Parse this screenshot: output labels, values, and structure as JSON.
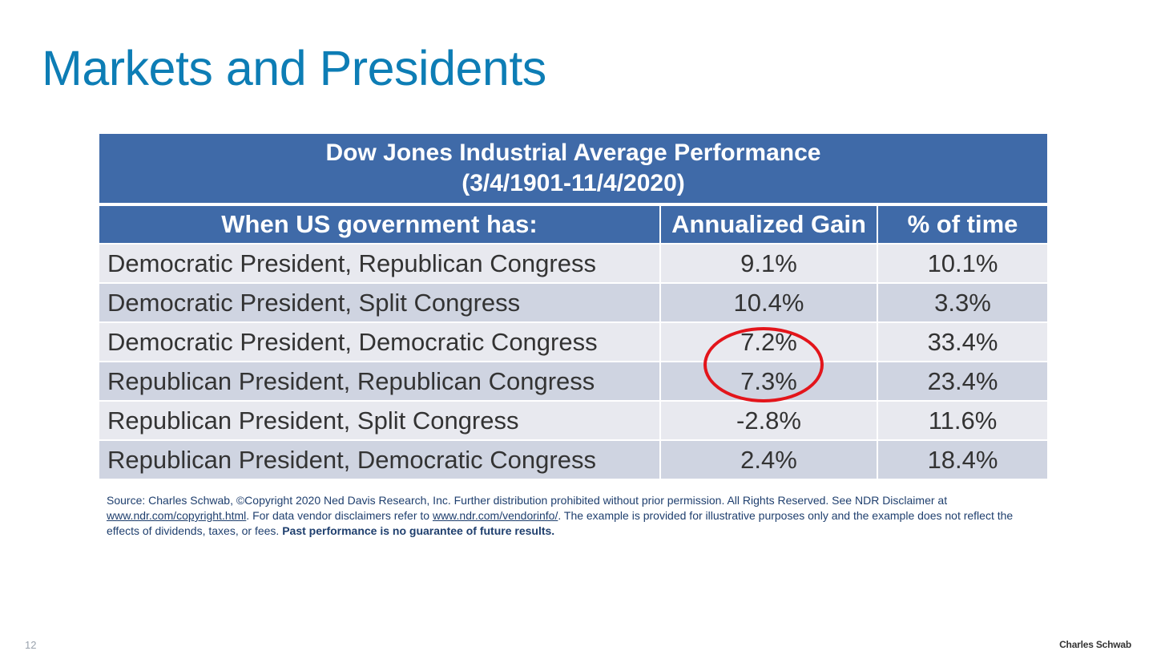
{
  "slide": {
    "title": "Markets and Presidents",
    "page_number": "12",
    "brand": "Charles Schwab"
  },
  "table": {
    "caption_line1": "Dow Jones Industrial Average Performance",
    "caption_line2": "(3/4/1901-11/4/2020)",
    "headers": [
      "When US government has:",
      "Annualized Gain",
      "% of time"
    ],
    "rows": [
      {
        "label": "Democratic President, Republican Congress",
        "gain": "9.1%",
        "time": "10.1%"
      },
      {
        "label": "Democratic President, Split Congress",
        "gain": "10.4%",
        "time": "3.3%"
      },
      {
        "label": "Democratic President, Democratic Congress",
        "gain": "7.2%",
        "time": "33.4%"
      },
      {
        "label": "Republican President, Republican Congress",
        "gain": "7.3%",
        "time": "23.4%"
      },
      {
        "label": "Republican President, Split Congress",
        "gain": "-2.8%",
        "time": "11.6%"
      },
      {
        "label": "Republican President, Democratic Congress",
        "gain": "2.4%",
        "time": "18.4%"
      }
    ],
    "highlight_color": "#e3151b"
  },
  "footnote": {
    "part1": "Source: Charles Schwab, ©Copyright 2020 Ned Davis Research, Inc. Further distribution prohibited without prior permission. All Rights Reserved. See NDR Disclaimer at ",
    "link1": "www.ndr.com/copyright.html",
    "part2": ". For data vendor disclaimers refer to ",
    "link2": "www.ndr.com/vendorinfo/",
    "part3": ". The example is provided for illustrative purposes only and the example does not reflect the effects of dividends, taxes, or fees. ",
    "bold": "Past performance is no guarantee of future results."
  },
  "colors": {
    "title": "#0d7db5",
    "header_bg": "#3f6aa8",
    "row_light": "#e8e9ef",
    "row_dark": "#cfd4e1"
  }
}
